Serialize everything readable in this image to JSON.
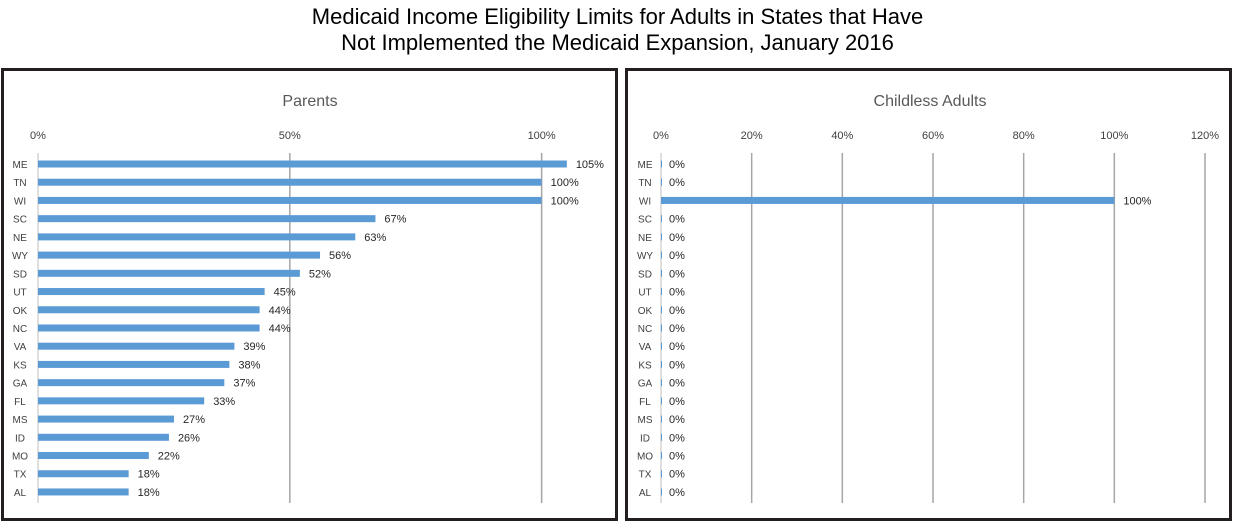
{
  "page": {
    "title_line1": "Medicaid Income Eligibility Limits for Adults in States that Have",
    "title_line2": "Not Implemented the Medicaid Expansion, January 2016"
  },
  "chart_data": [
    {
      "type": "bar",
      "orientation": "horizontal",
      "title": "Parents",
      "categories": [
        "ME",
        "TN",
        "WI",
        "SC",
        "NE",
        "WY",
        "SD",
        "UT",
        "OK",
        "NC",
        "VA",
        "KS",
        "GA",
        "FL",
        "MS",
        "ID",
        "MO",
        "TX",
        "AL"
      ],
      "values": [
        105,
        100,
        100,
        67,
        63,
        56,
        52,
        45,
        44,
        44,
        39,
        38,
        37,
        33,
        27,
        26,
        22,
        18,
        18
      ],
      "data_labels": [
        "105%",
        "100%",
        "100%",
        "67%",
        "63%",
        "56%",
        "52%",
        "45%",
        "44%",
        "44%",
        "39%",
        "38%",
        "37%",
        "33%",
        "27%",
        "26%",
        "22%",
        "18%",
        "18%"
      ],
      "xlim": [
        0,
        110
      ],
      "xticks": [
        0,
        50,
        100
      ],
      "xtick_labels": [
        "0%",
        "50%",
        "100%"
      ],
      "axis_position": "top",
      "grid": true
    },
    {
      "type": "bar",
      "orientation": "horizontal",
      "title": "Childless Adults",
      "categories": [
        "ME",
        "TN",
        "WI",
        "SC",
        "NE",
        "WY",
        "SD",
        "UT",
        "OK",
        "NC",
        "VA",
        "KS",
        "GA",
        "FL",
        "MS",
        "ID",
        "MO",
        "TX",
        "AL"
      ],
      "values": [
        0,
        0,
        100,
        0,
        0,
        0,
        0,
        0,
        0,
        0,
        0,
        0,
        0,
        0,
        0,
        0,
        0,
        0,
        0
      ],
      "data_labels": [
        "0%",
        "0%",
        "100%",
        "0%",
        "0%",
        "0%",
        "0%",
        "0%",
        "0%",
        "0%",
        "0%",
        "0%",
        "0%",
        "0%",
        "0%",
        "0%",
        "0%",
        "0%",
        "0%"
      ],
      "xlim": [
        0,
        120
      ],
      "xticks": [
        0,
        20,
        40,
        60,
        80,
        100,
        120
      ],
      "xtick_labels": [
        "0%",
        "20%",
        "40%",
        "60%",
        "80%",
        "100%",
        "120%"
      ],
      "axis_position": "top",
      "grid": true
    }
  ]
}
